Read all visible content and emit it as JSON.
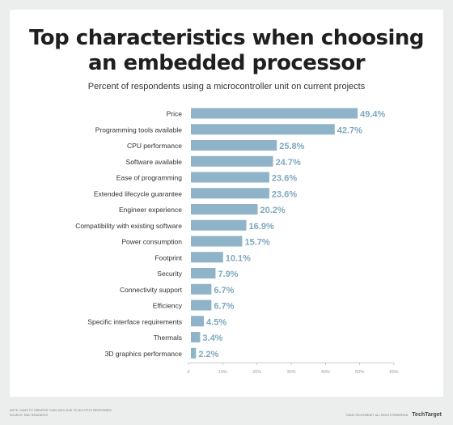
{
  "title_line1": "Top characteristics when choosing",
  "title_line2": "an embedded processor",
  "subtitle": "Percent of respondents using a microcontroller unit on current projects",
  "footer": {
    "note": "NOTE: SUMS TO GREATER THAN 100% DUE TO MULTIPLE RESPONSES.",
    "source": "SOURCE: EMC RESEARCH",
    "copyright": "©2020 TECHTARGET. ALL RIGHTS RESERVED.",
    "brand": "TechTarget"
  },
  "colors": {
    "bar": "#8fb4c9",
    "value_label": "#7fa8bf",
    "axis": "#bbbbbb",
    "tick_text": "#999999"
  },
  "chart_data": {
    "type": "bar",
    "orientation": "horizontal",
    "categories": [
      "Price",
      "Programming tools available",
      "CPU performance",
      "Software available",
      "Ease of programming",
      "Extended lifecycle guarantee",
      "Engineer experience",
      "Compatibility with existing software",
      "Power consumption",
      "Footprint",
      "Security",
      "Connectivity support",
      "Efficiency",
      "Specific interface requirements",
      "Thermals",
      "3D graphics performance"
    ],
    "values": [
      49.4,
      42.7,
      25.8,
      24.7,
      23.6,
      23.6,
      20.2,
      16.9,
      15.7,
      10.1,
      7.9,
      6.7,
      6.7,
      4.5,
      3.4,
      2.2
    ],
    "value_labels": [
      "49.4%",
      "42.7%",
      "25.8%",
      "24.7%",
      "23.6%",
      "23.6%",
      "20.2%",
      "16.9%",
      "15.7%",
      "10.1%",
      "7.9%",
      "6.7%",
      "6.7%",
      "4.5%",
      "3.4%",
      "2.2%"
    ],
    "xlim": [
      0,
      60
    ],
    "ticks": [
      0,
      10,
      20,
      30,
      40,
      50,
      60
    ],
    "tick_labels": [
      "0",
      "10%",
      "20%",
      "30%",
      "40%",
      "50%",
      "60%"
    ],
    "grid": false,
    "legend": "none"
  }
}
